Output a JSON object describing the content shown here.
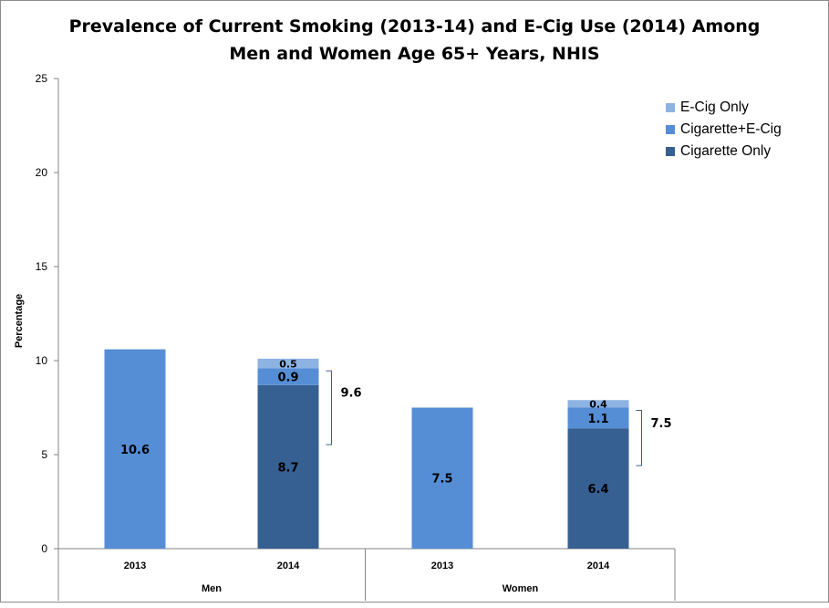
{
  "chart_data": {
    "type": "bar",
    "stacked": true,
    "title_line1": "Prevalence of Current Smoking (2013-14)  and E-Cig Use (2014) Among",
    "title_line2": "Men and Women Age 65+ Years, NHIS",
    "ylabel": "Percentage",
    "ylim": [
      0,
      25
    ],
    "yticks": [
      "0",
      "5",
      "10",
      "15",
      "20",
      "25"
    ],
    "grid": false,
    "legend_position": "top-right",
    "groups": [
      "Men",
      "Women"
    ],
    "categories": [
      "2013",
      "2014",
      "2013",
      "2014"
    ],
    "category_groups": [
      0,
      0,
      1,
      1
    ],
    "legend": [
      {
        "name": "E-Cig Only",
        "color": "#8db3e2"
      },
      {
        "name": "Cigarette+E-Cig",
        "color": "#558ed5"
      },
      {
        "name": "Cigarette Only",
        "color": "#376092"
      }
    ],
    "bars": [
      {
        "segments": [
          {
            "value": 10.6,
            "label": "10.6",
            "color": "#558ed5"
          }
        ]
      },
      {
        "segments": [
          {
            "value": 8.7,
            "label": "8.7",
            "color": "#376092"
          },
          {
            "value": 0.9,
            "label": "0.9",
            "color": "#558ed5"
          },
          {
            "value": 0.5,
            "label": "0.5",
            "color": "#8db3e2"
          }
        ],
        "bracket_label": "9.6"
      },
      {
        "segments": [
          {
            "value": 7.5,
            "label": "7.5",
            "color": "#558ed5"
          }
        ]
      },
      {
        "segments": [
          {
            "value": 6.4,
            "label": "6.4",
            "color": "#376092"
          },
          {
            "value": 1.1,
            "label": "1.1",
            "color": "#558ed5"
          },
          {
            "value": 0.4,
            "label": "0.4",
            "color": "#8db3e2"
          }
        ],
        "bracket_label": "7.5"
      }
    ]
  }
}
